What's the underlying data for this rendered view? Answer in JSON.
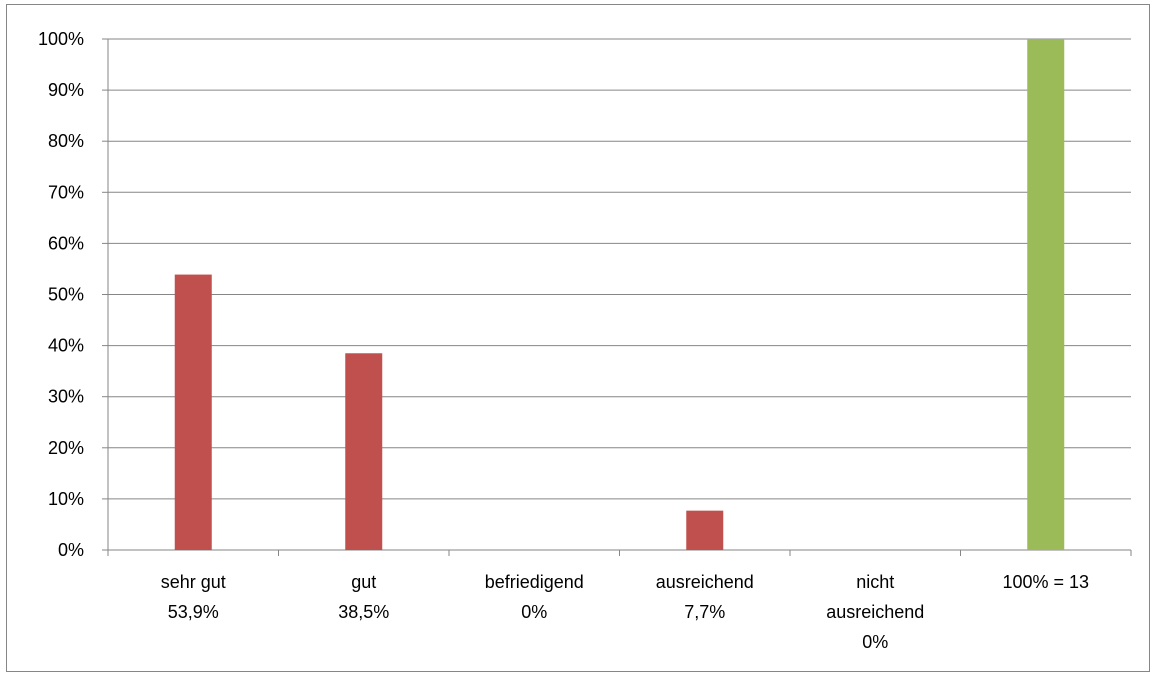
{
  "chart_data": {
    "type": "bar",
    "categories": [
      [
        "sehr gut",
        "53,9%"
      ],
      [
        "gut",
        "38,5%"
      ],
      [
        "befriedigend",
        "0%"
      ],
      [
        "ausreichend",
        "7,7%"
      ],
      [
        "nicht",
        "ausreichend",
        "0%"
      ],
      [
        "100% = 13"
      ]
    ],
    "values": [
      53.9,
      38.5,
      0,
      7.7,
      0,
      100
    ],
    "bar_colors": [
      "#c0504d",
      "#c0504d",
      "#c0504d",
      "#c0504d",
      "#c0504d",
      "#9bbb59"
    ],
    "ylim": [
      0,
      100
    ],
    "yticks": [
      "0%",
      "10%",
      "20%",
      "30%",
      "40%",
      "50%",
      "60%",
      "70%",
      "80%",
      "90%",
      "100%"
    ],
    "title": "",
    "xlabel": "",
    "ylabel": "",
    "grid": true,
    "legend": "none",
    "colors": {
      "gridline": "#868686",
      "axis": "#868686"
    }
  }
}
